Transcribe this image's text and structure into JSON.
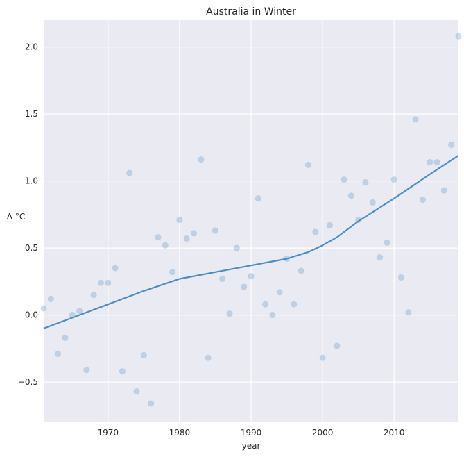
{
  "chart_data": {
    "type": "scatter",
    "title": "Australia in Winter",
    "xlabel": "year",
    "ylabel": "Δ °C",
    "xlim": [
      1961,
      2019
    ],
    "ylim": [
      -0.8,
      2.2
    ],
    "x_ticks": [
      1970,
      1980,
      1990,
      2000,
      2010
    ],
    "y_ticks": [
      -0.5,
      0.0,
      0.5,
      1.0,
      1.5,
      2.0
    ],
    "y_tick_labels": [
      "−0.5",
      "0.0",
      "0.5",
      "1.0",
      "1.5",
      "2.0"
    ],
    "grid": true,
    "background": "#eaeaf2",
    "grid_color": "#ffffff",
    "point_color": "#4c8dc4",
    "line_color": "#4c8dc4",
    "series": [
      {
        "kind": "points",
        "x": [
          1961,
          1962,
          1963,
          1964,
          1965,
          1966,
          1967,
          1968,
          1969,
          1970,
          1971,
          1972,
          1973,
          1974,
          1975,
          1976,
          1977,
          1978,
          1979,
          1980,
          1981,
          1982,
          1983,
          1984,
          1985,
          1986,
          1987,
          1988,
          1989,
          1990,
          1991,
          1992,
          1993,
          1994,
          1995,
          1996,
          1997,
          1998,
          1999,
          2000,
          2001,
          2002,
          2003,
          2004,
          2005,
          2006,
          2007,
          2008,
          2009,
          2010,
          2011,
          2012,
          2013,
          2014,
          2015,
          2016,
          2017,
          2018,
          2019
        ],
        "y": [
          0.05,
          0.12,
          -0.29,
          -0.17,
          0.0,
          0.03,
          -0.41,
          0.15,
          0.24,
          0.24,
          0.35,
          -0.42,
          1.06,
          -0.57,
          -0.3,
          -0.66,
          0.58,
          0.52,
          0.32,
          0.71,
          0.57,
          0.61,
          1.16,
          -0.32,
          0.63,
          0.27,
          0.01,
          0.5,
          0.21,
          0.29,
          0.87,
          0.08,
          0.0,
          0.17,
          0.42,
          0.08,
          0.33,
          1.12,
          0.62,
          -0.32,
          0.67,
          -0.23,
          1.01,
          0.89,
          0.71,
          0.99,
          0.84,
          0.43,
          0.54,
          1.01,
          0.28,
          0.02,
          1.46,
          0.86,
          1.14,
          1.14,
          0.93,
          1.27,
          2.08
        ]
      },
      {
        "kind": "trend",
        "x": [
          1961,
          1965,
          1970,
          1975,
          1980,
          1985,
          1990,
          1995,
          1998,
          2000,
          2002,
          2005,
          2010,
          2015,
          2019
        ],
        "y": [
          -0.1,
          -0.02,
          0.08,
          0.18,
          0.27,
          0.32,
          0.37,
          0.42,
          0.47,
          0.52,
          0.58,
          0.7,
          0.87,
          1.05,
          1.19
        ]
      }
    ]
  }
}
